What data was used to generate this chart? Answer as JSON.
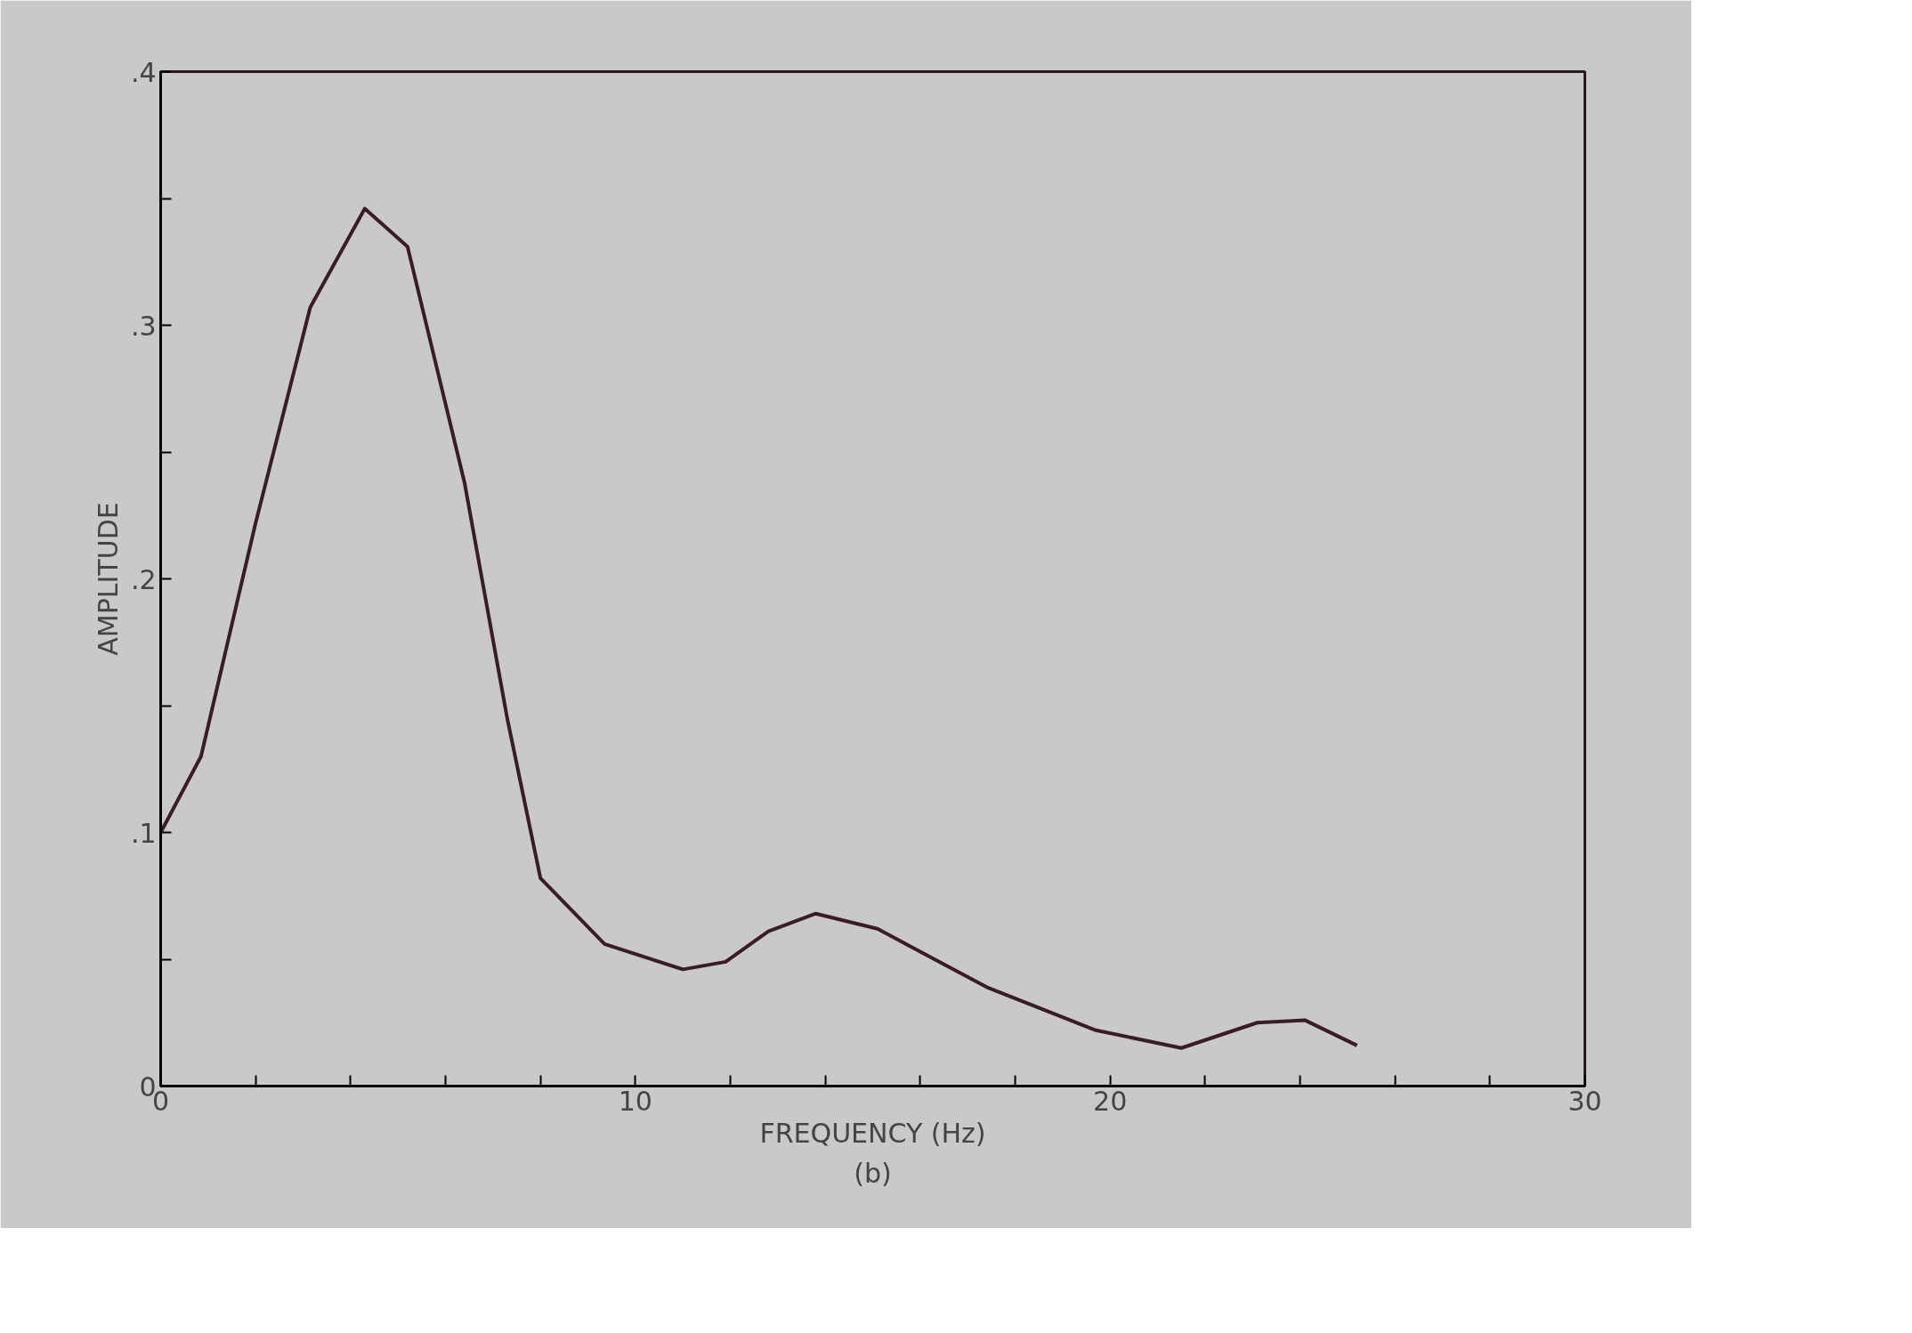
{
  "chart_data": {
    "type": "line",
    "xlabel": "FREQUENCY (Hz)",
    "ylabel": "AMPLITUDE",
    "annotations": [
      "(b)"
    ],
    "x": [
      0,
      0.85,
      2.0,
      3.15,
      4.3,
      5.2,
      6.4,
      7.3,
      8.0,
      9.35,
      11.0,
      11.9,
      12.8,
      13.8,
      15.1,
      17.4,
      19.7,
      21.5,
      23.1,
      24.1,
      25.2
    ],
    "series": [
      {
        "color": "#3a1c24",
        "values": [
          0.1,
          0.13,
          0.222,
          0.307,
          0.346,
          0.331,
          0.238,
          0.145,
          0.082,
          0.056,
          0.046,
          0.049,
          0.061,
          0.068,
          0.062,
          0.039,
          0.022,
          0.015,
          0.025,
          0.026,
          0.016
        ]
      }
    ],
    "xlim": [
      0,
      30
    ],
    "ylim": [
      0,
      0.4
    ],
    "xticks": [
      0,
      {
        "value": 2,
        "label": null
      },
      {
        "value": 4,
        "label": null
      },
      {
        "value": 6,
        "label": null
      },
      {
        "value": 8,
        "label": null
      },
      10,
      {
        "value": 12,
        "label": null
      },
      {
        "value": 14,
        "label": null
      },
      {
        "value": 16,
        "label": null
      },
      {
        "value": 18,
        "label": null
      },
      20,
      {
        "value": 22,
        "label": null
      },
      {
        "value": 24,
        "label": null
      },
      {
        "value": 26,
        "label": null
      },
      {
        "value": 28,
        "label": null
      },
      30
    ],
    "yticks": [
      0,
      {
        "value": 0.05,
        "label": null
      },
      {
        "value": 0.1,
        "label": ".1"
      },
      {
        "value": 0.15,
        "label": null
      },
      {
        "value": 0.2,
        "label": ".2"
      },
      {
        "value": 0.25,
        "label": null
      },
      {
        "value": 0.3,
        "label": ".3"
      },
      {
        "value": 0.35,
        "label": null
      },
      {
        "value": 0.4,
        "label": ".4"
      }
    ],
    "grid": false,
    "marker": "none",
    "line_style": "solid"
  }
}
